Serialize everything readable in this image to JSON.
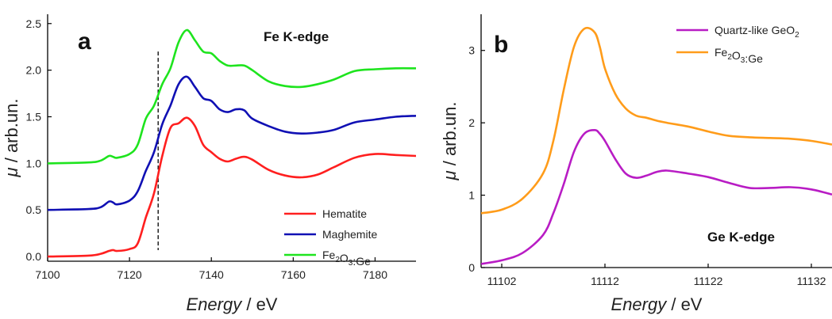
{
  "chart_data": [
    {
      "type": "line",
      "panel_label": "a",
      "annotation": "Fe K-edge",
      "xlabel_italic": "Energy",
      "xlabel_unit": " / eV",
      "ylabel_italic": "μ",
      "ylabel_unit": " / arb.un.",
      "xlim": [
        7100,
        7190
      ],
      "ylim": [
        -0.05,
        2.6
      ],
      "xticks": [
        7100,
        7120,
        7140,
        7160,
        7180
      ],
      "yticks": [
        "0.0",
        "0.5",
        "1.0",
        "1.5",
        "2.0",
        "2.5"
      ],
      "ytick_values": [
        0,
        0.5,
        1.0,
        1.5,
        2.0,
        2.5
      ],
      "legend_position": "bottom-right",
      "vline_x": 7127,
      "vline_range": [
        -0.05,
        2.2
      ],
      "series": [
        {
          "name": "Hematite",
          "color": "#ff1f1f",
          "x": [
            7100,
            7110,
            7113,
            7115,
            7116,
            7117,
            7120,
            7122,
            7124,
            7126,
            7128,
            7130,
            7132,
            7134,
            7136,
            7138,
            7140,
            7142,
            7144,
            7146,
            7148,
            7150,
            7154,
            7158,
            7162,
            7166,
            7170,
            7175,
            7180,
            7185,
            7190
          ],
          "y": [
            0.0,
            0.01,
            0.03,
            0.06,
            0.07,
            0.06,
            0.08,
            0.14,
            0.42,
            0.68,
            1.08,
            1.38,
            1.43,
            1.49,
            1.4,
            1.2,
            1.12,
            1.05,
            1.02,
            1.05,
            1.07,
            1.04,
            0.93,
            0.87,
            0.85,
            0.88,
            0.96,
            1.06,
            1.1,
            1.09,
            1.08
          ]
        },
        {
          "name": "Maghemite",
          "color": "#1010b4",
          "x": [
            7100,
            7110,
            7113,
            7115,
            7116,
            7117,
            7120,
            7122,
            7124,
            7126,
            7128,
            7130,
            7132,
            7134,
            7136,
            7138,
            7140,
            7142,
            7144,
            7146,
            7148,
            7150,
            7154,
            7158,
            7162,
            7166,
            7170,
            7175,
            7180,
            7185,
            7190
          ],
          "y": [
            0.5,
            0.51,
            0.53,
            0.59,
            0.58,
            0.56,
            0.6,
            0.7,
            0.92,
            1.12,
            1.42,
            1.62,
            1.85,
            1.93,
            1.82,
            1.7,
            1.67,
            1.58,
            1.55,
            1.58,
            1.57,
            1.48,
            1.4,
            1.34,
            1.32,
            1.33,
            1.36,
            1.44,
            1.47,
            1.5,
            1.51
          ]
        },
        {
          "name": "Fe₂O₃:Ge",
          "color": "#1ee41e",
          "x": [
            7100,
            7110,
            7113,
            7115,
            7116,
            7117,
            7120,
            7122,
            7124,
            7126,
            7128,
            7130,
            7132,
            7134,
            7136,
            7138,
            7140,
            7142,
            7144,
            7146,
            7148,
            7150,
            7154,
            7158,
            7162,
            7166,
            7170,
            7175,
            7180,
            7185,
            7190
          ],
          "y": [
            1.0,
            1.01,
            1.03,
            1.08,
            1.07,
            1.06,
            1.1,
            1.2,
            1.48,
            1.62,
            1.85,
            2.02,
            2.3,
            2.43,
            2.32,
            2.2,
            2.18,
            2.1,
            2.05,
            2.05,
            2.05,
            2.0,
            1.88,
            1.83,
            1.82,
            1.85,
            1.9,
            1.99,
            2.01,
            2.02,
            2.02
          ]
        }
      ]
    },
    {
      "type": "line",
      "panel_label": "b",
      "annotation": "Ge K-edge",
      "xlabel_italic": "Energy",
      "xlabel_unit": " / eV",
      "ylabel_italic": "μ",
      "ylabel_unit": " / arb.un.",
      "xlim": [
        11100,
        11134
      ],
      "ylim": [
        0,
        3.5
      ],
      "xticks": [
        11102,
        11112,
        11122,
        11132
      ],
      "yticks": [
        "0",
        "1",
        "2",
        "3"
      ],
      "ytick_values": [
        0,
        1,
        2,
        3
      ],
      "legend_position": "top-right",
      "series": [
        {
          "name": "Quartz-like GeO₂",
          "color": "#b81cc4",
          "x": [
            11100,
            11102,
            11104,
            11106,
            11107,
            11108,
            11109,
            11110,
            11111,
            11111.5,
            11112,
            11113,
            11114,
            11115,
            11116,
            11117,
            11118,
            11120,
            11122,
            11124,
            11126,
            11128,
            11130,
            11132,
            11134
          ],
          "y": [
            0.05,
            0.1,
            0.2,
            0.45,
            0.75,
            1.15,
            1.6,
            1.85,
            1.9,
            1.85,
            1.75,
            1.5,
            1.3,
            1.24,
            1.27,
            1.32,
            1.34,
            1.3,
            1.25,
            1.17,
            1.1,
            1.1,
            1.11,
            1.08,
            1.01
          ]
        },
        {
          "name": "Fe₂O₃:Ge",
          "color": "#ff9c1a",
          "x": [
            11100,
            11102,
            11104,
            11106,
            11107,
            11108,
            11109,
            11110,
            11111,
            11111.5,
            11112,
            11113,
            11114,
            11115,
            11116,
            11117,
            11118,
            11120,
            11122,
            11124,
            11126,
            11128,
            11130,
            11132,
            11134
          ],
          "y": [
            0.75,
            0.8,
            0.95,
            1.3,
            1.75,
            2.45,
            3.05,
            3.3,
            3.25,
            3.05,
            2.75,
            2.4,
            2.2,
            2.1,
            2.07,
            2.03,
            2.0,
            1.95,
            1.88,
            1.82,
            1.8,
            1.79,
            1.78,
            1.75,
            1.7
          ]
        }
      ]
    }
  ]
}
